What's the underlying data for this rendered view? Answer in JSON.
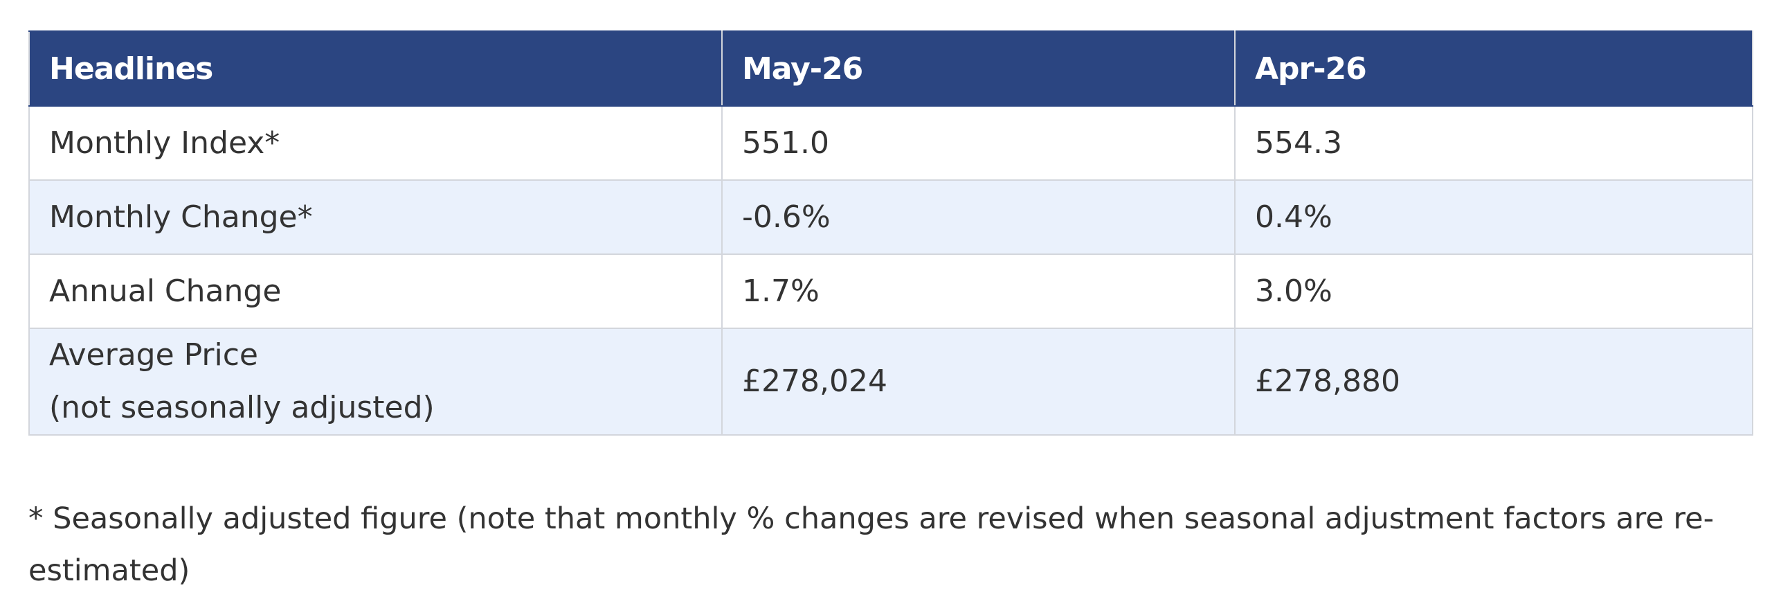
{
  "table": {
    "header": [
      "Headlines",
      "May-26",
      "Apr-26"
    ],
    "rows": [
      [
        [
          "Monthly Index*"
        ],
        [
          "551.0"
        ],
        [
          "554.3"
        ]
      ],
      [
        [
          "Monthly Change*"
        ],
        [
          "-0.6%"
        ],
        [
          "0.4%"
        ]
      ],
      [
        [
          "Annual Change"
        ],
        [
          "1.7%"
        ],
        [
          "3.0%"
        ]
      ],
      [
        [
          "Average Price",
          "(not seasonally adjusted)"
        ],
        [
          "£278,024"
        ],
        [
          "£278,880"
        ]
      ]
    ]
  },
  "footnote": "* Seasonally adjusted figure (note that monthly % changes are revised when seasonal adjustment factors are re-estimated)"
}
